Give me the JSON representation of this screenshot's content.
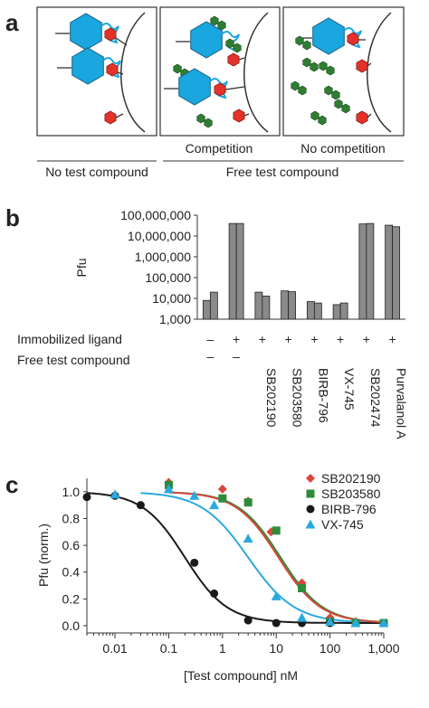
{
  "figure": {
    "panel_a": {
      "letter": "a",
      "competition_label": "Competition",
      "no_competition_label": "No competition",
      "no_test_compound_label": "No test compound",
      "free_test_compound_label": "Free test compound",
      "colors": {
        "kinase": "#1aa6df",
        "ligand": "#e4322b",
        "compound": "#2e7d32"
      }
    },
    "panel_b": {
      "letter": "b",
      "row_labels": {
        "immobilized": "Immobilized ligand",
        "free": "Free test compound"
      },
      "bar_color": "#8a8a8a"
    },
    "panel_c": {
      "letter": "c"
    }
  },
  "chart_data": [
    {
      "type": "bar",
      "ylabel": "Pfu",
      "yscale": "log",
      "ylim": [
        1000,
        100000000
      ],
      "yticks": [
        "1,000",
        "10,000",
        "100,000",
        "1,000,000",
        "10,000,000",
        "100,000,000"
      ],
      "categories": [
        "",
        "",
        "SB202190",
        "SB203580",
        "BIRB-796",
        "VX-745",
        "SB202474",
        "Purvalanol A"
      ],
      "immobilized_ligand": [
        "–",
        "+",
        "+",
        "+",
        "+",
        "+",
        "+",
        "+"
      ],
      "free_test_compound": [
        "–",
        "–",
        "",
        "",
        "",
        "",
        "",
        ""
      ],
      "series": [
        {
          "values": [
            8000,
            40000000,
            20000,
            23000,
            7000,
            5000,
            38000000,
            33000000
          ]
        },
        {
          "values": [
            20000,
            40000000,
            13000,
            21000,
            6000,
            6000,
            40000000,
            28000000
          ]
        }
      ]
    },
    {
      "type": "scatter",
      "xlabel": "[Test compound] nM",
      "ylabel": "Pfu (norm.)",
      "xscale": "log",
      "xlim": [
        0.003,
        1000
      ],
      "ylim": [
        0,
        1.1
      ],
      "xticks": [
        "0.01",
        "0.1",
        "1",
        "10",
        "100",
        "1,000"
      ],
      "yticks": [
        "0.0",
        "0.2",
        "0.4",
        "0.6",
        "0.8",
        "1.0"
      ],
      "legend_position": "top-right",
      "series": [
        {
          "name": "SB202190",
          "color": "#d9463b",
          "marker": "diamond",
          "ic50": 11,
          "hill": 1.1,
          "x": [
            0.1,
            1.0,
            3.0,
            8.0,
            30.0,
            100.0,
            300.0,
            1000.0
          ],
          "y": [
            1.07,
            1.02,
            0.93,
            0.7,
            0.32,
            0.06,
            0.03,
            0.02
          ]
        },
        {
          "name": "SB203580",
          "color": "#2e8b3a",
          "marker": "square",
          "ic50": 12,
          "hill": 1.1,
          "x": [
            0.1,
            1.0,
            3.0,
            10.0,
            30.0,
            100.0,
            300.0,
            1000.0
          ],
          "y": [
            1.05,
            0.95,
            0.92,
            0.71,
            0.28,
            0.03,
            0.02,
            0.02
          ]
        },
        {
          "name": "BIRB-796",
          "color": "#1a1a1a",
          "marker": "circle",
          "ic50": 0.2,
          "hill": 1.1,
          "x": [
            0.003,
            0.01,
            0.03,
            0.3,
            0.7,
            3.0,
            10.0,
            30.0,
            100.0
          ],
          "y": [
            0.96,
            0.97,
            0.9,
            0.47,
            0.24,
            0.04,
            0.02,
            0.02,
            0.02
          ]
        },
        {
          "name": "VX-745",
          "color": "#2aa9df",
          "marker": "triangle",
          "ic50": 3.0,
          "hill": 1.0,
          "x": [
            0.01,
            0.1,
            0.3,
            0.7,
            3.0,
            10.0,
            30.0,
            100.0,
            300.0,
            1000.0
          ],
          "y": [
            0.98,
            1.02,
            0.97,
            0.9,
            0.65,
            0.22,
            0.06,
            0.03,
            0.02,
            0.02
          ]
        }
      ]
    }
  ]
}
